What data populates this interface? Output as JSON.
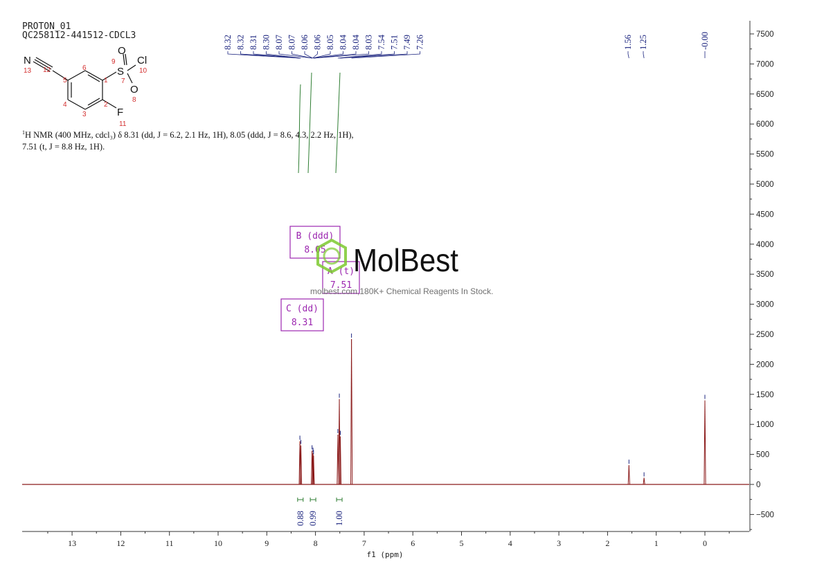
{
  "header": {
    "experiment": "PROTON_01",
    "sample_id": "QC258112-441512-CDCL3"
  },
  "nmr_text": {
    "line1_pre": "1",
    "line1": "H NMR (400 MHz, cdcl₃) δ 8.31 (dd, J = 6.2, 2.1 Hz, 1H), 8.05 (ddd, J = 8.6, 4.3, 2.2 Hz, 1H),",
    "line2": "7.51 (t, J = 8.8 Hz, 1H)."
  },
  "structure": {
    "atoms": [
      "N",
      "S",
      "Cl",
      "O",
      "O",
      "F"
    ],
    "numbers": [
      "13",
      "12",
      "5",
      "6",
      "1",
      "7",
      "9",
      "10",
      "8",
      "4",
      "3",
      "2",
      "11"
    ]
  },
  "peak_labels": {
    "group1": [
      "8.32",
      "8.32",
      "8.31",
      "8.30",
      "8.07",
      "8.07",
      "8.06",
      "8.06",
      "8.05",
      "8.04",
      "8.04",
      "8.03",
      "7.54",
      "7.51",
      "7.49",
      "7.26"
    ],
    "group2": [
      "1.56",
      "1.25"
    ],
    "group3": [
      "-0.00"
    ]
  },
  "multiplets": [
    {
      "letter": "B",
      "type": "(ddd)",
      "shift": "8.05"
    },
    {
      "letter": "A",
      "type": "(t)",
      "shift": "7.51"
    },
    {
      "letter": "C",
      "type": "(dd)",
      "shift": "8.31"
    }
  ],
  "integrals": [
    {
      "ppm": 8.31,
      "value": "0.88"
    },
    {
      "ppm": 8.05,
      "value": "0.99"
    },
    {
      "ppm": 7.51,
      "value": "1.00"
    }
  ],
  "watermark": {
    "brand": "MolBest",
    "tagline": "molbest.com,180K+ Chemical Reagents In Stock."
  },
  "colors": {
    "spectrum": "#8b1a1a",
    "peak_label": "#1a237e",
    "integral": "#2e7d32",
    "multiplet_box": "#9c27b0",
    "logo_green": "#7cc92f"
  },
  "chart_data": {
    "type": "line",
    "title": "",
    "xlabel": "f1 (ppm)",
    "ylabel": "",
    "xlim": [
      14,
      -0.9
    ],
    "ylim": [
      -800,
      7700
    ],
    "x_ticks": [
      13,
      12,
      11,
      10,
      9,
      8,
      7,
      6,
      5,
      4,
      3,
      2,
      1,
      0
    ],
    "y_ticks": [
      7500,
      7000,
      6500,
      6000,
      5500,
      5000,
      4500,
      4000,
      3500,
      3000,
      2500,
      2000,
      1500,
      1000,
      500,
      0,
      -500
    ],
    "grid": false,
    "peaks": [
      {
        "ppm": 8.32,
        "height": 720
      },
      {
        "ppm": 8.3,
        "height": 650
      },
      {
        "ppm": 8.07,
        "height": 560
      },
      {
        "ppm": 8.05,
        "height": 520
      },
      {
        "ppm": 8.04,
        "height": 480
      },
      {
        "ppm": 7.54,
        "height": 830
      },
      {
        "ppm": 7.51,
        "height": 1420
      },
      {
        "ppm": 7.49,
        "height": 800
      },
      {
        "ppm": 7.26,
        "height": 2420
      },
      {
        "ppm": 1.56,
        "height": 320
      },
      {
        "ppm": 1.25,
        "height": 110
      },
      {
        "ppm": 0.0,
        "height": 1400
      }
    ]
  }
}
